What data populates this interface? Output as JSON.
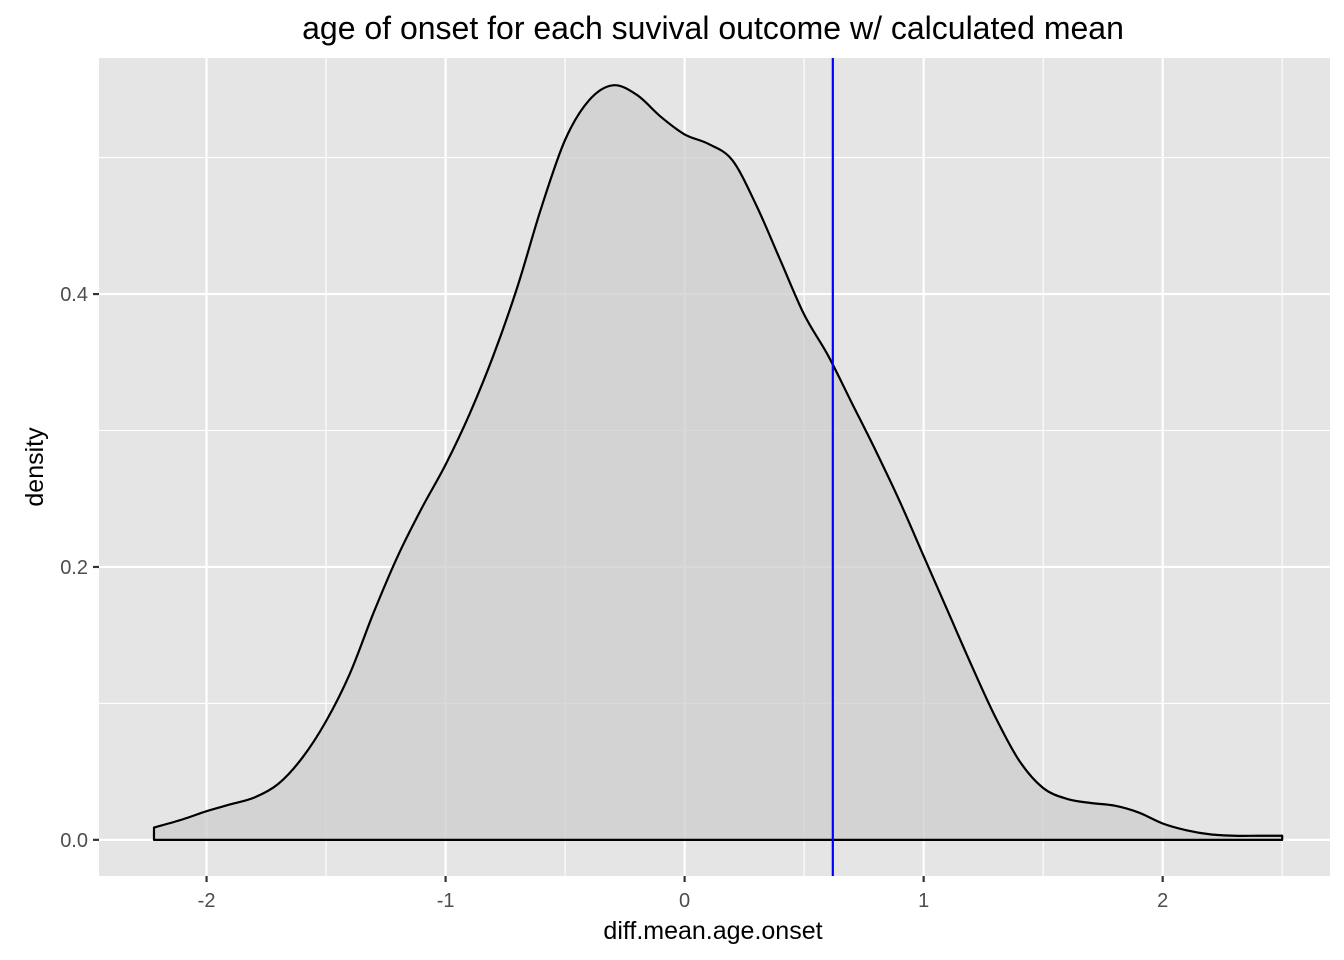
{
  "chart_data": {
    "type": "area",
    "title": "age of onset for each suvival outcome w/ calculated mean",
    "xlabel": "diff.mean.age.onset",
    "ylabel": "density",
    "xlim": [
      -2.45,
      2.7
    ],
    "ylim": [
      -0.0265,
      0.573
    ],
    "x_ticks": [
      {
        "value": -2,
        "label": "-2"
      },
      {
        "value": -1,
        "label": "-1"
      },
      {
        "value": 0,
        "label": "0"
      },
      {
        "value": 1,
        "label": "1"
      },
      {
        "value": 2,
        "label": "2"
      }
    ],
    "y_ticks": [
      {
        "value": 0.0,
        "label": "0.0"
      },
      {
        "value": 0.2,
        "label": "0.2"
      },
      {
        "value": 0.4,
        "label": "0.4"
      }
    ],
    "grid": true,
    "mean_line": {
      "x": 0.62,
      "color": "#0000ff"
    },
    "colors": {
      "panel": "#e5e5e5",
      "grid": "#ffffff",
      "fill": "#cccccc",
      "outline": "#000000"
    },
    "series": [
      {
        "x": [
          -2.22,
          -2.1,
          -2.0,
          -1.9,
          -1.8,
          -1.7,
          -1.6,
          -1.5,
          -1.4,
          -1.3,
          -1.2,
          -1.1,
          -1.0,
          -0.9,
          -0.8,
          -0.7,
          -0.6,
          -0.5,
          -0.4,
          -0.3,
          -0.2,
          -0.1,
          0.0,
          0.1,
          0.2,
          0.3,
          0.4,
          0.5,
          0.6,
          0.7,
          0.8,
          0.9,
          1.0,
          1.1,
          1.2,
          1.3,
          1.4,
          1.5,
          1.6,
          1.7,
          1.8,
          1.9,
          2.0,
          2.1,
          2.2,
          2.3,
          2.4,
          2.5
        ],
        "values": [
          0.009,
          0.015,
          0.021,
          0.026,
          0.031,
          0.041,
          0.06,
          0.087,
          0.122,
          0.167,
          0.208,
          0.243,
          0.275,
          0.312,
          0.355,
          0.405,
          0.463,
          0.513,
          0.542,
          0.553,
          0.546,
          0.53,
          0.517,
          0.51,
          0.498,
          0.465,
          0.425,
          0.385,
          0.355,
          0.32,
          0.285,
          0.248,
          0.208,
          0.168,
          0.128,
          0.09,
          0.058,
          0.038,
          0.03,
          0.027,
          0.025,
          0.02,
          0.012,
          0.007,
          0.004,
          0.003,
          0.003,
          0.003
        ]
      }
    ]
  }
}
